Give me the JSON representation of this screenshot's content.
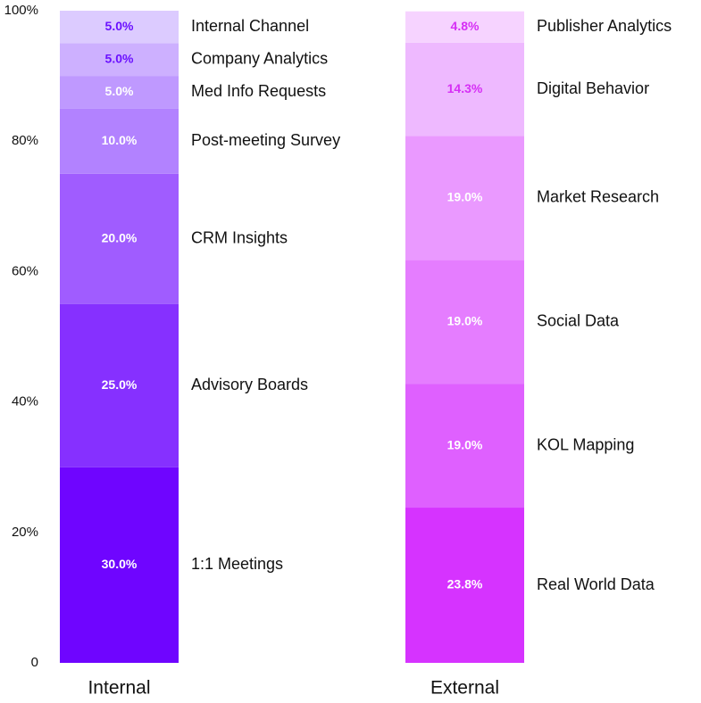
{
  "chart_data": {
    "type": "stacked_bar",
    "ylim": [
      0,
      100
    ],
    "yticks": [
      0,
      {
        "value": 20,
        "label": "20%"
      },
      {
        "value": 40,
        "label": "40%"
      },
      {
        "value": 60,
        "label": "60%"
      },
      {
        "value": 80,
        "label": "80%"
      },
      {
        "value": 100,
        "label": "100%"
      }
    ],
    "stacks": [
      {
        "name": "Internal",
        "segments": [
          {
            "name": "1:1 Meetings",
            "value": 30,
            "value_label": "30.0%",
            "color": "#6f05ff",
            "label_color": "#ffffff"
          },
          {
            "name": "Advisory Boards",
            "value": 25,
            "value_label": "25.0%",
            "color": "#8630ff",
            "label_color": "#ffffff"
          },
          {
            "name": "CRM Insights",
            "value": 20,
            "value_label": "20.0%",
            "color": "#a05cff",
            "label_color": "#ffffff"
          },
          {
            "name": "Post-meeting Survey",
            "value": 10,
            "value_label": "10.0%",
            "color": "#b282ff",
            "label_color": "#ffffff"
          },
          {
            "name": "Med Info Requests",
            "value": 5,
            "value_label": "5.0%",
            "color": "#bf99ff",
            "label_color": "#ffffff"
          },
          {
            "name": "Company Analytics",
            "value": 5,
            "value_label": "5.0%",
            "color": "#cdb0ff",
            "label_color": "#6b11ff"
          },
          {
            "name": "Internal Channel",
            "value": 5,
            "value_label": "5.0%",
            "color": "#dccbff",
            "label_color": "#6b11ff"
          }
        ]
      },
      {
        "name": "External",
        "segments": [
          {
            "name": "Real World Data",
            "value": 23.8,
            "value_label": "23.8%",
            "color": "#d633ff",
            "label_color": "#ffffff"
          },
          {
            "name": "KOL Mapping",
            "value": 19.0,
            "value_label": "19.0%",
            "color": "#df60ff",
            "label_color": "#ffffff"
          },
          {
            "name": "Social Data",
            "value": 19.0,
            "value_label": "19.0%",
            "color": "#e57dff",
            "label_color": "#ffffff"
          },
          {
            "name": "Market Research",
            "value": 19.0,
            "value_label": "19.0%",
            "color": "#ea99ff",
            "label_color": "#ffffff"
          },
          {
            "name": "Digital Behavior",
            "value": 14.3,
            "value_label": "14.3%",
            "color": "#eeb9ff",
            "label_color": "#d62ff5"
          },
          {
            "name": "Publisher Analytics",
            "value": 4.8,
            "value_label": "4.8%",
            "color": "#f6d3ff",
            "label_color": "#d62ff5"
          }
        ]
      }
    ]
  }
}
